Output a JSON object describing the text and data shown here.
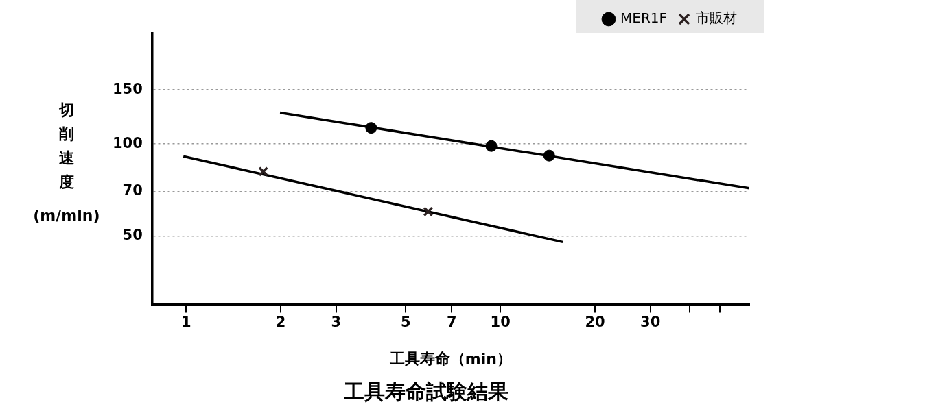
{
  "chart_data": {
    "type": "scatter",
    "title": "工具寿命試験結果",
    "xlabel": "工具寿命（min）",
    "ylabel": "切削速度\n(m/min)",
    "log": "xy",
    "xlim": [
      0.78,
      62
    ],
    "ylim": [
      30,
      230
    ],
    "xticks": [
      1,
      2,
      3,
      5,
      7,
      10,
      20,
      30,
      {
        "value": 40,
        "label": null
      },
      {
        "value": 50,
        "label": null
      }
    ],
    "yticks": [
      50,
      70,
      100,
      150
    ],
    "grid": "y",
    "legend": "top right",
    "series": [
      {
        "name": "MER1F",
        "marker": "circle",
        "color": "#000000",
        "x": [
          3.88,
          9.36,
          14.3
        ],
        "values": [
          112.8,
          98.4,
          91.6
        ]
      },
      {
        "name": "市販材",
        "marker": "cross",
        "color": "#2b2020",
        "x": [
          1.76,
          5.89
        ],
        "values": [
          81.3,
          60.2
        ]
      },
      {
        "type": "line",
        "marker": "none",
        "line_style": "solid",
        "color": "#000000",
        "x": [
          1.99,
          62
        ],
        "values": [
          126.4,
          71.7
        ]
      },
      {
        "type": "line",
        "marker": "none",
        "line_style": "solid",
        "color": "#000000",
        "x": [
          0.98,
          15.8
        ],
        "values": [
          91.1,
          47.9
        ]
      }
    ]
  }
}
